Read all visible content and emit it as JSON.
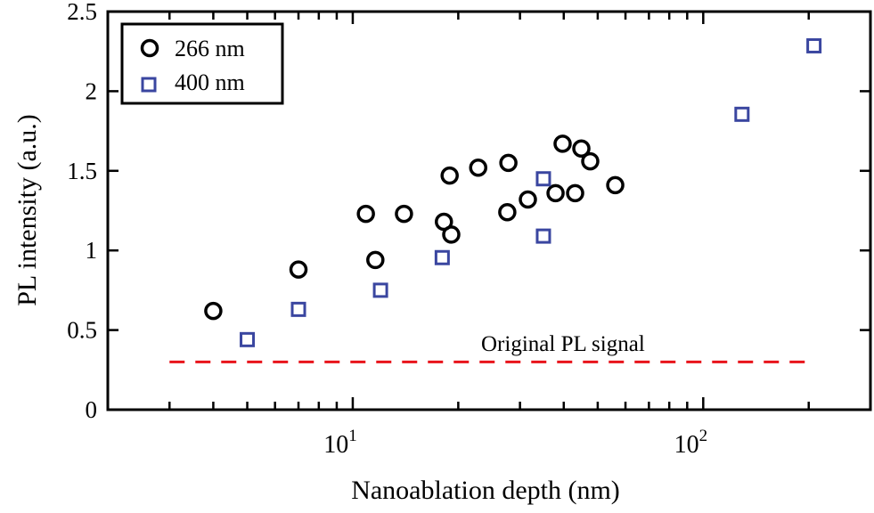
{
  "chart_data": {
    "type": "scatter",
    "xlabel": "Nanoablation depth (nm)",
    "ylabel": "PL intensity (a.u.)",
    "xscale": "log",
    "xlim": [
      2,
      300
    ],
    "ylim": [
      0,
      2.5
    ],
    "xticks": [
      {
        "value": 10,
        "base": "10",
        "exp": "1"
      },
      {
        "value": 100,
        "base": "10",
        "exp": "2"
      }
    ],
    "yticks": [
      {
        "value": 0,
        "label": "0"
      },
      {
        "value": 0.5,
        "label": "0.5"
      },
      {
        "value": 1,
        "label": "1"
      },
      {
        "value": 1.5,
        "label": "1.5"
      },
      {
        "value": 2,
        "label": "2"
      },
      {
        "value": 2.5,
        "label": "2.5"
      }
    ],
    "grid": false,
    "legend_position": "top-left",
    "series": [
      {
        "name": "266 nm",
        "marker": "circle",
        "color": "#000000",
        "x": [
          4.0,
          7.0,
          10.9,
          11.6,
          14.0,
          18.2,
          18.9,
          19.1,
          22.8,
          27.8,
          27.6,
          31.6,
          37.9,
          39.7,
          43.1,
          44.9,
          47.6,
          56.1
        ],
        "y": [
          0.62,
          0.88,
          1.23,
          0.94,
          1.23,
          1.18,
          1.47,
          1.1,
          1.52,
          1.55,
          1.24,
          1.32,
          1.36,
          1.67,
          1.36,
          1.64,
          1.56,
          1.41
        ]
      },
      {
        "name": "400 nm",
        "marker": "square",
        "color": "#3a46a0",
        "x": [
          5.0,
          7.0,
          12.0,
          18.0,
          35.0,
          35.0,
          129,
          207
        ],
        "y": [
          0.44,
          0.63,
          0.75,
          0.955,
          1.45,
          1.09,
          1.855,
          2.285
        ]
      }
    ],
    "reference_line": {
      "label": "Original PL signal",
      "y": 0.3,
      "x": [
        3,
        200
      ],
      "color": "#e8141b",
      "style": "dashed"
    }
  }
}
